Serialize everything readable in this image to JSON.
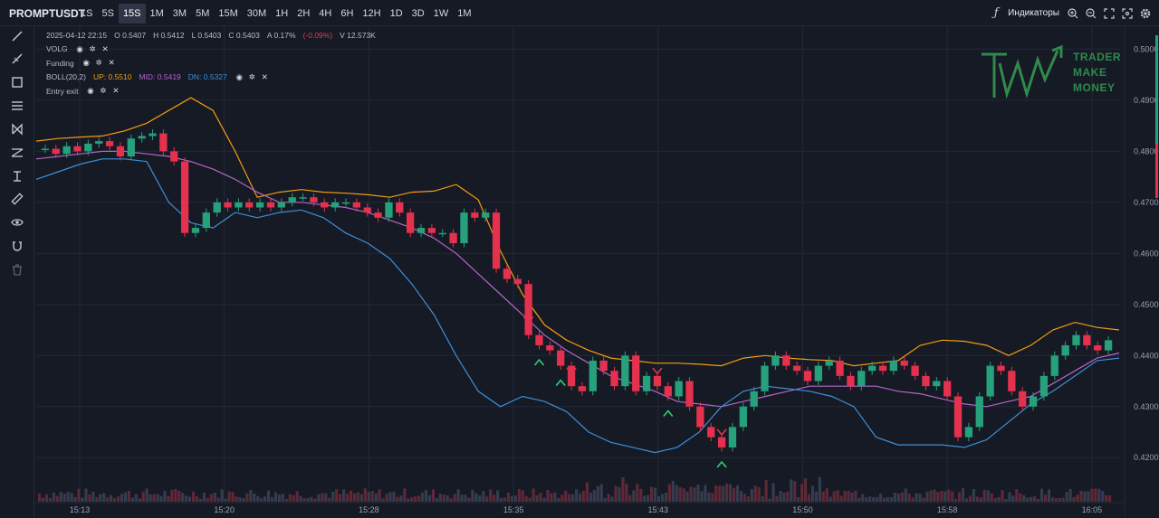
{
  "header": {
    "symbol": "PROMPTUSDT",
    "timeframes": [
      "1S",
      "5S",
      "15S",
      "1M",
      "3M",
      "5M",
      "15M",
      "30M",
      "1H",
      "2H",
      "4H",
      "6H",
      "12H",
      "1D",
      "3D",
      "1W",
      "1M"
    ],
    "active_timeframe": "15S",
    "indicators_label": "Индикаторы"
  },
  "legend": {
    "datetime": "2025-04-12 22:15",
    "open": "O 0.5407",
    "high": "H 0.5412",
    "low": "L 0.5403",
    "close": "C 0.5403",
    "amp": "A 0.17%",
    "change": "(-0.09%)",
    "volume": "V 12.573K",
    "studies": [
      {
        "name": "VOLG"
      },
      {
        "name": "Funding"
      },
      {
        "name": "BOLL(20,2)",
        "up": "UP: 0.5510",
        "mid": "MID: 0.5419",
        "dn": "DN: 0.5327"
      },
      {
        "name": "Entry exit"
      }
    ]
  },
  "watermark": {
    "line1": "TRADER",
    "line2": "MAKE",
    "line3": "MONEY"
  },
  "colors": {
    "background": "#161a25",
    "up_candle": "#26a17b",
    "down_candle": "#e3314e",
    "boll_up": "#f39c12",
    "boll_mid": "#b466c9",
    "boll_dn": "#3d8fd9",
    "axis_text": "#9aa0ad",
    "watermark": "#2f8a4c"
  },
  "icons": {
    "toolbar": [
      "trend-line-icon",
      "ray-icon",
      "rectangle-icon",
      "parallel-channel-icon",
      "xabcd-pattern-icon",
      "fib-icon",
      "text-cursor-icon",
      "ruler-icon",
      "eye-icon",
      "magnet-icon",
      "trash-icon"
    ],
    "topbar": [
      "fx-icon",
      "zoom-in-icon",
      "zoom-out-icon",
      "fullscreen-icon",
      "screenshot-icon",
      "settings-icon"
    ]
  },
  "chart_data": {
    "type": "candlestick",
    "x_ticks": [
      "15:13",
      "15:20",
      "15:28",
      "15:35",
      "15:43",
      "15:50",
      "15:58",
      "16:05"
    ],
    "y_ticks": [
      "0.5000",
      "0.4900",
      "0.4800",
      "0.4700",
      "0.4600",
      "0.4500",
      "0.4400",
      "0.4300",
      "0.4200"
    ],
    "ylim": [
      0.4165,
      0.5045
    ],
    "grid": true,
    "close_series": [
      0.4805,
      0.4795,
      0.481,
      0.48,
      0.4815,
      0.482,
      0.481,
      0.479,
      0.4825,
      0.483,
      0.4835,
      0.48,
      0.478,
      0.464,
      0.465,
      0.468,
      0.47,
      0.469,
      0.47,
      0.469,
      0.47,
      0.469,
      0.47,
      0.471,
      0.471,
      0.47,
      0.469,
      0.47,
      0.47,
      0.469,
      0.468,
      0.467,
      0.47,
      0.468,
      0.464,
      0.465,
      0.464,
      0.464,
      0.462,
      0.468,
      0.467,
      0.468,
      0.457,
      0.455,
      0.454,
      0.444,
      0.442,
      0.441,
      0.438,
      0.434,
      0.433,
      0.439,
      0.437,
      0.434,
      0.44,
      0.433,
      0.436,
      0.434,
      0.432,
      0.435,
      0.43,
      0.426,
      0.424,
      0.422,
      0.426,
      0.43,
      0.433,
      0.438,
      0.44,
      0.438,
      0.437,
      0.435,
      0.438,
      0.439,
      0.436,
      0.434,
      0.437,
      0.438,
      0.437,
      0.439,
      0.438,
      0.436,
      0.434,
      0.435,
      0.432,
      0.424,
      0.426,
      0.432,
      0.438,
      0.437,
      0.433,
      0.43,
      0.432,
      0.436,
      0.44,
      0.442,
      0.444,
      0.442,
      0.441,
      0.443
    ],
    "boll_up_series": [
      0.482,
      0.4825,
      0.4828,
      0.483,
      0.484,
      0.4855,
      0.488,
      0.4905,
      0.488,
      0.48,
      0.471,
      0.472,
      0.4725,
      0.472,
      0.4718,
      0.4715,
      0.471,
      0.472,
      0.4722,
      0.4735,
      0.4705,
      0.4605,
      0.452,
      0.446,
      0.443,
      0.441,
      0.4395,
      0.439,
      0.4385,
      0.4385,
      0.4383,
      0.438,
      0.4395,
      0.44,
      0.4395,
      0.4392,
      0.439,
      0.438,
      0.4385,
      0.439,
      0.442,
      0.443,
      0.4428,
      0.442,
      0.44,
      0.442,
      0.445,
      0.4465,
      0.4455,
      0.445
    ],
    "boll_mid_series": [
      0.4785,
      0.479,
      0.4795,
      0.48,
      0.48,
      0.4795,
      0.479,
      0.478,
      0.4765,
      0.4745,
      0.472,
      0.47,
      0.47,
      0.4695,
      0.469,
      0.468,
      0.4665,
      0.465,
      0.463,
      0.46,
      0.456,
      0.452,
      0.448,
      0.444,
      0.441,
      0.4385,
      0.436,
      0.4345,
      0.433,
      0.431,
      0.4305,
      0.43,
      0.431,
      0.432,
      0.433,
      0.434,
      0.434,
      0.434,
      0.434,
      0.433,
      0.4325,
      0.4315,
      0.4305,
      0.43,
      0.431,
      0.432,
      0.4345,
      0.437,
      0.4395,
      0.4405
    ],
    "boll_dn_series": [
      0.4745,
      0.476,
      0.4775,
      0.4785,
      0.4785,
      0.478,
      0.47,
      0.466,
      0.465,
      0.468,
      0.467,
      0.468,
      0.4685,
      0.467,
      0.464,
      0.462,
      0.459,
      0.454,
      0.448,
      0.44,
      0.433,
      0.43,
      0.432,
      0.431,
      0.429,
      0.425,
      0.423,
      0.422,
      0.421,
      0.422,
      0.425,
      0.43,
      0.433,
      0.434,
      0.4335,
      0.433,
      0.432,
      0.43,
      0.424,
      0.4225,
      0.4225,
      0.4225,
      0.422,
      0.4235,
      0.427,
      0.4305,
      0.433,
      0.436,
      0.439,
      0.4395
    ]
  }
}
